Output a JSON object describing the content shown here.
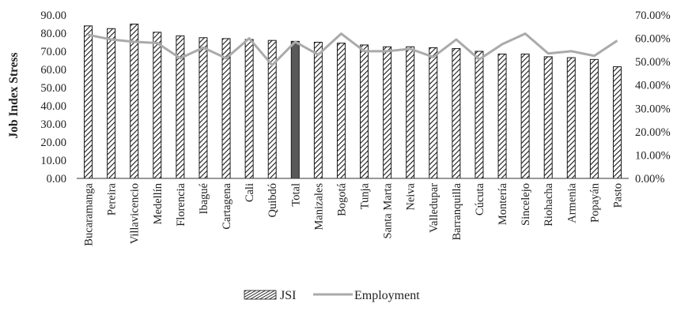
{
  "chart_data": {
    "type": "bar",
    "ylabel": "Job Index Stress",
    "y_left": {
      "range": [
        0,
        90
      ],
      "ticks": [
        0,
        10,
        20,
        30,
        40,
        50,
        60,
        70,
        80,
        90
      ],
      "tick_labels": [
        "0.00",
        "10.00",
        "20.00",
        "30.00",
        "40.00",
        "50.00",
        "60.00",
        "70.00",
        "80.00",
        "90.00"
      ]
    },
    "y_right": {
      "range": [
        0,
        70
      ],
      "ticks": [
        0,
        10,
        20,
        30,
        40,
        50,
        60,
        70
      ],
      "tick_labels": [
        "0.00%",
        "10.00%",
        "20.00%",
        "30.00%",
        "40.00%",
        "50.00%",
        "60.00%",
        "70.00%"
      ]
    },
    "grid": false,
    "legend_position": "bottom",
    "categories": [
      "Bucaramanga",
      "Pereira",
      "Villavicencio",
      "Medellín",
      "Florencia",
      "Ibagué",
      "Cartagena",
      "Cali",
      "Quibdó",
      "Total",
      "Manizales",
      "Bogotá",
      "Tunja",
      "Santa Marta",
      "Neiva",
      "Valledupar",
      "Barranquilla",
      "Cúcuta",
      "Montería",
      "Sincelejo",
      "Riohacha",
      "Armenia",
      "Popayán",
      "Pasto"
    ],
    "highlight_category": "Total",
    "series": [
      {
        "name": "JSI",
        "type": "bar",
        "axis": "left",
        "pattern": "diagonal-hatch",
        "values": [
          84,
          82.5,
          85,
          80.5,
          78.5,
          77.5,
          77,
          76.5,
          76,
          75.5,
          75,
          74.5,
          73.5,
          72.5,
          72.5,
          72,
          71.5,
          70,
          68.5,
          68.5,
          67,
          66.5,
          65.5,
          61.5
        ]
      },
      {
        "name": "Employment",
        "type": "line",
        "axis": "right",
        "color": "#aaaaaa",
        "values": [
          61.5,
          59.5,
          58.5,
          58,
          51.5,
          56,
          51.5,
          60,
          48.5,
          58.5,
          53,
          62,
          54.5,
          54.5,
          55.5,
          52,
          59.5,
          51,
          57.5,
          62,
          53.5,
          54.5,
          52.5,
          59
        ]
      }
    ],
    "colors": {
      "bar_outline": "#1a1a1a",
      "total_fill": "#595959",
      "line": "#aaaaaa"
    }
  }
}
